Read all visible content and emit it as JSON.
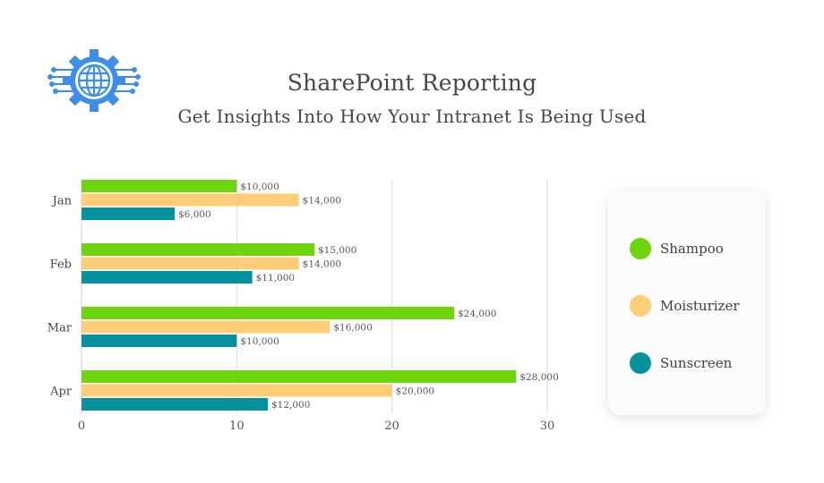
{
  "header": {
    "logo_icon": "globe-gear-icon",
    "title": "SharePoint Reporting",
    "subtitle": "Get Insights Into How Your Intranet Is Being Used"
  },
  "colors": {
    "shampoo": "#6ed40c",
    "moisturizer": "#fdcd78",
    "sunscreen": "#05929e",
    "logo": "#3d8ee8",
    "grid": "#d9d9d9"
  },
  "chart_data": {
    "type": "bar",
    "orientation": "horizontal",
    "title": "SharePoint Reporting",
    "subtitle": "Get Insights Into How Your Intranet Is Being Used",
    "xlabel": "",
    "ylabel": "",
    "categories": [
      "Jan",
      "Feb",
      "Mar",
      "Apr"
    ],
    "xlim": [
      0,
      30
    ],
    "xticks": [
      0,
      10,
      20,
      30
    ],
    "grid": true,
    "legend_position": "right",
    "series": [
      {
        "name": "Shampoo",
        "color": "#6ed40c",
        "values": [
          10,
          15,
          24,
          28
        ],
        "labels": [
          "$10,000",
          "$15,000",
          "$24,000",
          "$28,000"
        ]
      },
      {
        "name": "Moisturizer",
        "color": "#fdcd78",
        "values": [
          14,
          14,
          16,
          20
        ],
        "labels": [
          "$14,000",
          "$14,000",
          "$16,000",
          "$20,000"
        ]
      },
      {
        "name": "Sunscreen",
        "color": "#05929e",
        "values": [
          6,
          11,
          10,
          12
        ],
        "labels": [
          "$6,000",
          "$11,000",
          "$10,000",
          "$12,000"
        ]
      }
    ]
  },
  "legend": {
    "items": [
      {
        "label": "Shampoo",
        "color": "#6ed40c"
      },
      {
        "label": "Moisturizer",
        "color": "#fdcd78"
      },
      {
        "label": "Sunscreen",
        "color": "#05929e"
      }
    ]
  }
}
